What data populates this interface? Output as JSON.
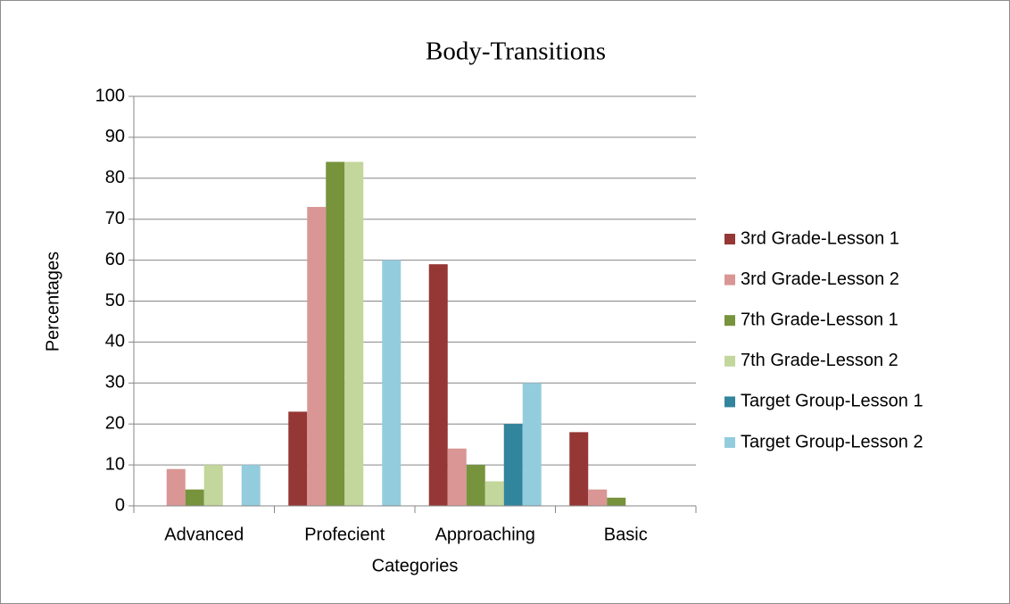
{
  "chart_data": {
    "type": "bar",
    "title": "Body-Transitions",
    "x_label": "Categories",
    "y_label": "Percentages",
    "categories": [
      "Advanced",
      "Profecient",
      "Approaching",
      "Basic"
    ],
    "series": [
      {
        "name": "3rd Grade-Lesson 1",
        "color": "#953735",
        "values": [
          0,
          23,
          59,
          18
        ]
      },
      {
        "name": "3rd Grade-Lesson 2",
        "color": "#d99694",
        "values": [
          9,
          73,
          14,
          4
        ]
      },
      {
        "name": "7th Grade-Lesson 1",
        "color": "#77933c",
        "values": [
          4,
          84,
          10,
          2
        ]
      },
      {
        "name": "7th Grade-Lesson 2",
        "color": "#c3d69b",
        "values": [
          10,
          84,
          6,
          0
        ]
      },
      {
        "name": "Target Group-Lesson 1",
        "color": "#31859c",
        "values": [
          0,
          0,
          20,
          0
        ]
      },
      {
        "name": "Target Group-Lesson 2",
        "color": "#93cddd",
        "values": [
          10,
          60,
          30,
          0
        ]
      }
    ],
    "ylim": [
      0,
      100
    ],
    "yticks": [
      0,
      10,
      20,
      30,
      40,
      50,
      60,
      70,
      80,
      90,
      100
    ],
    "grid": true,
    "legend": "right"
  }
}
